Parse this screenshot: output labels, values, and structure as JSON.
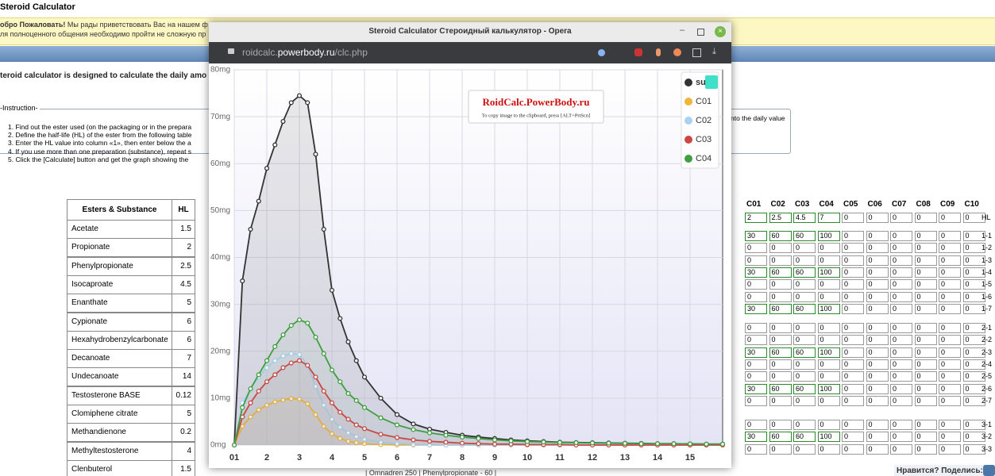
{
  "page": {
    "title": "Steroid Calculator",
    "banner": {
      "bold": "обро Пожаловать!",
      "line1": "Мы рады приветствовать Вас на нашем ф",
      "line2": "ля полноценного общения необходимо пройти не сложную пр"
    },
    "intro": "teroid calculator is designed to calculate the daily amo",
    "instruction": {
      "legend": "Instruction",
      "steps": [
        "1. Find out the ester used (on the packaging or in the prepara",
        "2. Define the half-life (HL) of the ester from the following table",
        "3. Enter the HL value into column «1», then enter below the a",
        "4. If you use more than one preparation (substance), repeat s",
        "5. Click the [Calculate] button and get the graph showing the"
      ],
      "tail": "nto the daily value"
    },
    "esters": {
      "header": [
        "Esters & Substance",
        "HL"
      ],
      "rows": [
        [
          "Acetate",
          1.5
        ],
        [
          "Propionate",
          2
        ],
        [
          "Phenylpropionate",
          2.5
        ],
        [
          "Isocaproate",
          4.5
        ],
        [
          "Enanthate",
          5
        ],
        [
          "Cypionate",
          6
        ],
        [
          "Hexahydrobenzylcarbonate",
          6
        ],
        [
          "Decanoate",
          7
        ],
        [
          "Undecanoate",
          14
        ],
        [
          "Testosterone BASE",
          0.12
        ],
        [
          "Clomiphene citrate",
          5
        ],
        [
          "Methandienone",
          0.2
        ],
        [
          "Methyltestosterone",
          4
        ],
        [
          "Clenbuterol",
          1.5
        ]
      ]
    },
    "grid": {
      "columns": [
        "C01",
        "C02",
        "C03",
        "C04",
        "C05",
        "C06",
        "C07",
        "C08",
        "C09",
        "C10"
      ],
      "rows": [
        {
          "label": "HL",
          "values": [
            2,
            2.5,
            4.5,
            7,
            0,
            0,
            0,
            0,
            0,
            0
          ]
        },
        {
          "label": "1-1",
          "values": [
            30,
            60,
            60,
            100,
            0,
            0,
            0,
            0,
            0,
            0
          ]
        },
        {
          "label": "1-2",
          "values": [
            0,
            0,
            0,
            0,
            0,
            0,
            0,
            0,
            0,
            0
          ]
        },
        {
          "label": "1-3",
          "values": [
            0,
            0,
            0,
            0,
            0,
            0,
            0,
            0,
            0,
            0
          ]
        },
        {
          "label": "1-4",
          "values": [
            30,
            60,
            60,
            100,
            0,
            0,
            0,
            0,
            0,
            0
          ]
        },
        {
          "label": "1-5",
          "values": [
            0,
            0,
            0,
            0,
            0,
            0,
            0,
            0,
            0,
            0
          ]
        },
        {
          "label": "1-6",
          "values": [
            0,
            0,
            0,
            0,
            0,
            0,
            0,
            0,
            0,
            0
          ]
        },
        {
          "label": "1-7",
          "values": [
            30,
            60,
            60,
            100,
            0,
            0,
            0,
            0,
            0,
            0
          ]
        },
        {
          "label": "2-1",
          "values": [
            0,
            0,
            0,
            0,
            0,
            0,
            0,
            0,
            0,
            0
          ]
        },
        {
          "label": "2-2",
          "values": [
            0,
            0,
            0,
            0,
            0,
            0,
            0,
            0,
            0,
            0
          ]
        },
        {
          "label": "2-3",
          "values": [
            30,
            60,
            60,
            100,
            0,
            0,
            0,
            0,
            0,
            0
          ]
        },
        {
          "label": "2-4",
          "values": [
            0,
            0,
            0,
            0,
            0,
            0,
            0,
            0,
            0,
            0
          ]
        },
        {
          "label": "2-5",
          "values": [
            0,
            0,
            0,
            0,
            0,
            0,
            0,
            0,
            0,
            0
          ]
        },
        {
          "label": "2-6",
          "values": [
            30,
            60,
            60,
            100,
            0,
            0,
            0,
            0,
            0,
            0
          ]
        },
        {
          "label": "2-7",
          "values": [
            0,
            0,
            0,
            0,
            0,
            0,
            0,
            0,
            0,
            0
          ]
        },
        {
          "label": "3-1",
          "values": [
            0,
            0,
            0,
            0,
            0,
            0,
            0,
            0,
            0,
            0
          ]
        },
        {
          "label": "3-2",
          "values": [
            30,
            60,
            60,
            100,
            0,
            0,
            0,
            0,
            0,
            0
          ]
        },
        {
          "label": "3-3",
          "values": [
            0,
            0,
            0,
            0,
            0,
            0,
            0,
            0,
            0,
            0
          ]
        }
      ]
    },
    "footer": "| Omnadren 250 | Phenylpropionate - 60 |",
    "share": "Нравится? Поделись:"
  },
  "browser": {
    "title": "Steroid Calculator Стероидный калькулятор - Opera",
    "url_host": "roidcalc.",
    "url_domain": "powerbody.ru",
    "url_path": "/clc.php"
  },
  "chart_data": {
    "type": "line",
    "title": "RoidCalc.PowerBody.ru",
    "subtitle": "To copy image to the clipboard, press [ALT+PrtScn]",
    "x": [
      1,
      1.25,
      1.5,
      1.75,
      2,
      2.25,
      2.5,
      2.75,
      3,
      3.25,
      3.5,
      3.75,
      4,
      4.25,
      4.5,
      4.75,
      5,
      5.5,
      6,
      6.5,
      7,
      7.5,
      8,
      8.5,
      9,
      9.5,
      10,
      10.5,
      11,
      11.5,
      12,
      12.5,
      13,
      13.5,
      14,
      14.5,
      15,
      15.5,
      16
    ],
    "series": [
      {
        "name": "sum",
        "color": "#333333",
        "values": [
          0,
          35,
          46,
          52,
          59,
          64,
          69,
          73,
          74.5,
          73,
          62,
          46,
          33,
          27,
          22,
          18,
          14.5,
          10,
          6.5,
          4.5,
          3.4,
          2.7,
          2.1,
          1.7,
          1.4,
          1.1,
          0.9,
          0.75,
          0.6,
          0.55,
          0.5,
          0.45,
          0.4,
          0.35,
          0.3,
          0.3,
          0.25,
          0.2,
          0.2
        ]
      },
      {
        "name": "C01",
        "color": "#f0b63a",
        "values": [
          0,
          4,
          6,
          7.5,
          8.5,
          9.2,
          9.6,
          9.9,
          9.8,
          8.8,
          6.5,
          4,
          2.4,
          1.4,
          0.8,
          0.5,
          0.3,
          0.1,
          0,
          0,
          0,
          0,
          0,
          0,
          0,
          0,
          0,
          0,
          0,
          0,
          0,
          0,
          0,
          0,
          0,
          0,
          0,
          0,
          0
        ]
      },
      {
        "name": "C02",
        "color": "#a9d1f0",
        "values": [
          0,
          9,
          12,
          14.5,
          16.5,
          18,
          19,
          19.5,
          19.3,
          17,
          12.5,
          8.5,
          5.5,
          3.8,
          2.6,
          1.8,
          1.2,
          0.6,
          0.3,
          0.1,
          0,
          0,
          0,
          0,
          0,
          0,
          0,
          0,
          0,
          0,
          0,
          0,
          0,
          0,
          0,
          0,
          0,
          0,
          0
        ]
      },
      {
        "name": "C03",
        "color": "#d04545",
        "values": [
          0,
          6,
          9,
          11.5,
          13.5,
          15,
          16.5,
          17.5,
          18,
          17,
          14.5,
          11.5,
          9,
          7,
          5.5,
          4.3,
          3.5,
          2.3,
          1.6,
          1.1,
          0.8,
          0.6,
          0.4,
          0.3,
          0.2,
          0.2,
          0.1,
          0.1,
          0.1,
          0,
          0,
          0,
          0,
          0,
          0,
          0,
          0,
          0,
          0
        ]
      },
      {
        "name": "C04",
        "color": "#3f9e3f",
        "values": [
          0,
          8,
          12,
          15,
          18,
          21,
          23.5,
          25.5,
          26.7,
          26,
          23,
          19.5,
          16,
          13.5,
          11,
          9.5,
          8,
          5.8,
          4.3,
          3.3,
          2.6,
          2.1,
          1.7,
          1.4,
          1.1,
          0.9,
          0.75,
          0.65,
          0.55,
          0.5,
          0.45,
          0.4,
          0.35,
          0.3,
          0.3,
          0.3,
          0.25,
          0.2,
          0.2
        ]
      }
    ],
    "xlim": [
      1,
      16
    ],
    "xticks": [
      {
        "value": 1,
        "label": "01"
      },
      2,
      3,
      4,
      5,
      6,
      7,
      8,
      9,
      10,
      11,
      12,
      13,
      14,
      15
    ],
    "ylim": [
      0,
      80
    ],
    "yticks": [
      {
        "value": 0,
        "label": "0mg"
      },
      {
        "value": 10,
        "label": "10mg"
      },
      {
        "value": 20,
        "label": "20mg"
      },
      {
        "value": 30,
        "label": "30mg"
      },
      {
        "value": 40,
        "label": "40mg"
      },
      {
        "value": 50,
        "label": "50mg"
      },
      {
        "value": 60,
        "label": "60mg"
      },
      {
        "value": 70,
        "label": "70mg"
      },
      {
        "value": 80,
        "label": "80mg"
      }
    ],
    "grid": true,
    "legend": "upper right"
  }
}
